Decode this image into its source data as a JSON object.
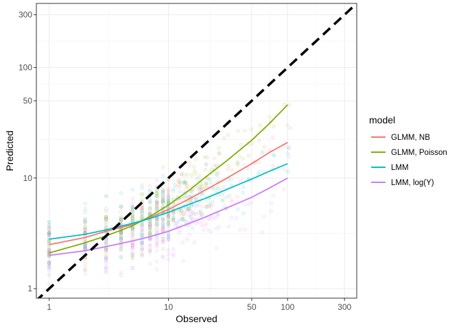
{
  "chart_data": {
    "type": "scatter",
    "title": "",
    "xlabel": "Observed",
    "ylabel": "Predicted",
    "x_scale": "log10",
    "y_scale": "log10",
    "xlim": [
      0.78,
      380
    ],
    "ylim": [
      0.82,
      380
    ],
    "x_ticks": [
      {
        "value": 1,
        "label": "1"
      },
      {
        "value": 10,
        "label": "10"
      },
      {
        "value": 50,
        "label": "50"
      },
      {
        "value": 100,
        "label": "100"
      },
      {
        "value": 300,
        "label": "300"
      }
    ],
    "y_ticks": [
      {
        "value": 1,
        "label": "1"
      },
      {
        "value": 10,
        "label": "10"
      },
      {
        "value": 50,
        "label": "50"
      },
      {
        "value": 100,
        "label": "100"
      },
      {
        "value": 300,
        "label": "300"
      }
    ],
    "grid": true,
    "legend": {
      "title": "model",
      "placement": "right"
    },
    "reference_line": {
      "type": "identity",
      "style": "dashed",
      "color": "#000000"
    },
    "series": [
      {
        "name": "GLMM, NB",
        "color": "#F8766D",
        "x": [
          1,
          2,
          3,
          5,
          7,
          10,
          15,
          20,
          30,
          50,
          70,
          100
        ],
        "y": [
          2.5,
          2.9,
          3.3,
          3.8,
          4.4,
          5.2,
          6.5,
          7.7,
          9.8,
          13.5,
          17.0,
          21.0
        ]
      },
      {
        "name": "GLMM, Poisson",
        "color": "#7CAE00",
        "x": [
          1,
          2,
          3,
          5,
          7,
          10,
          15,
          20,
          30,
          50,
          70,
          100
        ],
        "y": [
          2.1,
          2.6,
          3.0,
          3.7,
          4.5,
          5.7,
          7.8,
          10.0,
          14.0,
          22.0,
          31.0,
          46.0
        ]
      },
      {
        "name": "LMM",
        "color": "#00BFC4",
        "x": [
          1,
          2,
          3,
          5,
          7,
          10,
          15,
          20,
          30,
          50,
          70,
          100
        ],
        "y": [
          2.8,
          3.1,
          3.4,
          3.9,
          4.3,
          4.9,
          5.8,
          6.5,
          7.8,
          9.8,
          11.5,
          13.5
        ]
      },
      {
        "name": "LMM, log(Y)",
        "color": "#C77CFF",
        "x": [
          1,
          2,
          3,
          5,
          7,
          10,
          15,
          20,
          30,
          50,
          70,
          100
        ],
        "y": [
          2.0,
          2.2,
          2.4,
          2.7,
          2.95,
          3.3,
          3.9,
          4.4,
          5.3,
          6.7,
          8.1,
          10.0
        ]
      }
    ]
  }
}
